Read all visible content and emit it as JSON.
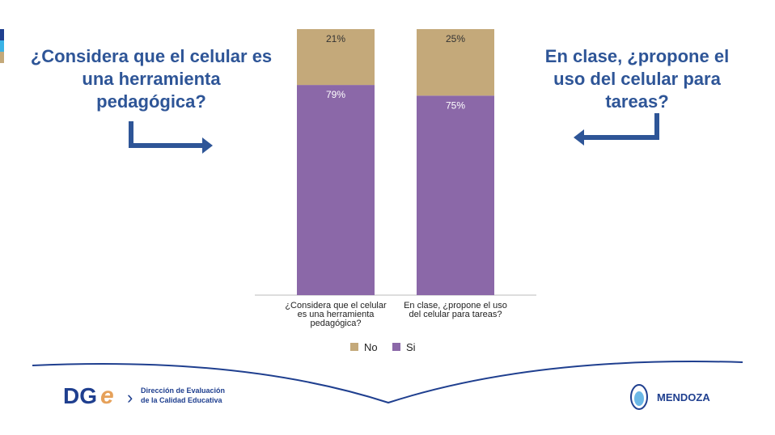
{
  "chart_data": {
    "type": "stacked_bar",
    "categories": [
      "¿Considera que el celular es una herramienta pedagógica?",
      "En clase, ¿propone el uso del celular para tareas?"
    ],
    "series": [
      {
        "name": "Si",
        "color": "#8b68a8",
        "values": [
          79,
          75
        ],
        "value_labels": [
          "79%",
          "75%"
        ]
      },
      {
        "name": "No",
        "color": "#c4a97a",
        "values": [
          21,
          25
        ],
        "value_labels": [
          "21%",
          "25%"
        ]
      }
    ],
    "ylim": [
      0,
      100
    ],
    "legend": "bottom"
  },
  "slide": {
    "left_question": "¿Considera que el celular es una herramienta pedagógica?",
    "right_question": "En clase, ¿propone el uso del celular para tareas?",
    "logo_main": "DG",
    "logo_accent": "e",
    "org_line1": "Dirección de Evaluación",
    "org_line2": "de la Calidad Educativa",
    "province": "MENDOZA"
  }
}
